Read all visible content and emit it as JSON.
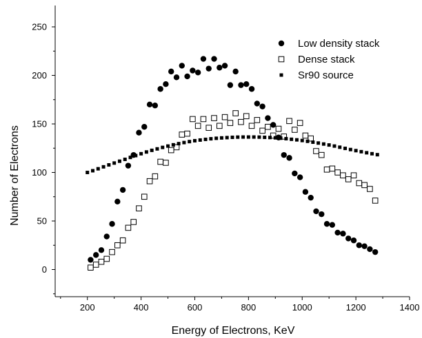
{
  "chart_data": {
    "type": "scatter",
    "title": "",
    "xlabel": "Energy of Electrons, KeV",
    "ylabel": "Number of Electrons",
    "xlim": [
      80,
      1400
    ],
    "ylim": [
      -28,
      272
    ],
    "xticks": [
      200,
      400,
      600,
      800,
      1000,
      1200,
      1400
    ],
    "yticks": [
      0,
      50,
      100,
      150,
      200,
      250
    ],
    "grid": false,
    "legend_position": "top-right",
    "series": [
      {
        "name": "Low density stack",
        "marker": "filled-circle",
        "color": "#000000",
        "x": [
          212,
          232,
          252,
          272,
          292,
          312,
          332,
          352,
          372,
          392,
          412,
          432,
          452,
          472,
          492,
          512,
          532,
          552,
          572,
          592,
          612,
          632,
          652,
          672,
          692,
          712,
          732,
          752,
          772,
          792,
          812,
          832,
          852,
          872,
          892,
          912,
          932,
          952,
          972,
          992,
          1012,
          1032,
          1052,
          1072,
          1092,
          1112,
          1132,
          1152,
          1172,
          1192,
          1212,
          1232,
          1252,
          1272
        ],
        "y": [
          10,
          15,
          20,
          34,
          47,
          70,
          82,
          107,
          118,
          141,
          147,
          170,
          169,
          186,
          191,
          204,
          198,
          210,
          199,
          205,
          203,
          217,
          207,
          217,
          208,
          210,
          190,
          204,
          190,
          191,
          186,
          171,
          168,
          156,
          149,
          136,
          118,
          115,
          99,
          95,
          80,
          74,
          60,
          57,
          47,
          46,
          38,
          37,
          32,
          30,
          25,
          24,
          21,
          18
        ]
      },
      {
        "name": "Dense stack",
        "marker": "open-square",
        "color": "#000000",
        "x": [
          212,
          232,
          252,
          272,
          292,
          312,
          332,
          352,
          372,
          392,
          412,
          432,
          452,
          472,
          492,
          512,
          532,
          552,
          572,
          592,
          612,
          632,
          652,
          672,
          692,
          712,
          732,
          752,
          772,
          792,
          812,
          832,
          852,
          872,
          892,
          912,
          932,
          952,
          972,
          992,
          1012,
          1032,
          1052,
          1072,
          1092,
          1112,
          1132,
          1152,
          1172,
          1192,
          1212,
          1232,
          1252,
          1272
        ],
        "y": [
          2,
          5,
          8,
          11,
          18,
          25,
          30,
          43,
          49,
          63,
          75,
          91,
          96,
          111,
          110,
          123,
          126,
          139,
          140,
          155,
          148,
          155,
          146,
          156,
          148,
          157,
          151,
          161,
          152,
          158,
          148,
          154,
          143,
          147,
          138,
          145,
          137,
          153,
          144,
          151,
          138,
          135,
          122,
          118,
          103,
          104,
          100,
          97,
          93,
          97,
          89,
          87,
          83,
          71
        ]
      },
      {
        "name": "Sr90 source",
        "marker": "filled-small-square",
        "color": "#000000",
        "x": [
          200,
          220,
          240,
          260,
          280,
          300,
          320,
          340,
          360,
          380,
          400,
          420,
          440,
          460,
          480,
          500,
          520,
          540,
          560,
          580,
          600,
          620,
          640,
          660,
          680,
          700,
          720,
          740,
          760,
          780,
          800,
          820,
          840,
          860,
          880,
          900,
          920,
          940,
          960,
          980,
          1000,
          1020,
          1040,
          1060,
          1080,
          1100,
          1120,
          1140,
          1160,
          1180,
          1200,
          1220,
          1240,
          1260,
          1280
        ],
        "y": [
          100,
          101.8,
          103.8,
          105.8,
          107.8,
          109.7,
          111.6,
          113.5,
          115.5,
          117.4,
          119.3,
          121.1,
          122.8,
          124.3,
          125.8,
          127.2,
          128.5,
          129.7,
          130.8,
          131.8,
          132.7,
          133.4,
          134.1,
          134.7,
          135.2,
          135.6,
          135.9,
          136.2,
          136.4,
          136.5,
          136.5,
          136.5,
          136.4,
          136.2,
          136.0,
          135.7,
          135.3,
          134.8,
          134.2,
          133.6,
          132.9,
          132.1,
          131.2,
          130.3,
          129.3,
          128.3,
          127.2,
          126.0,
          124.8,
          123.6,
          122.5,
          121.4,
          120.3,
          119.3,
          118.3
        ]
      }
    ]
  }
}
